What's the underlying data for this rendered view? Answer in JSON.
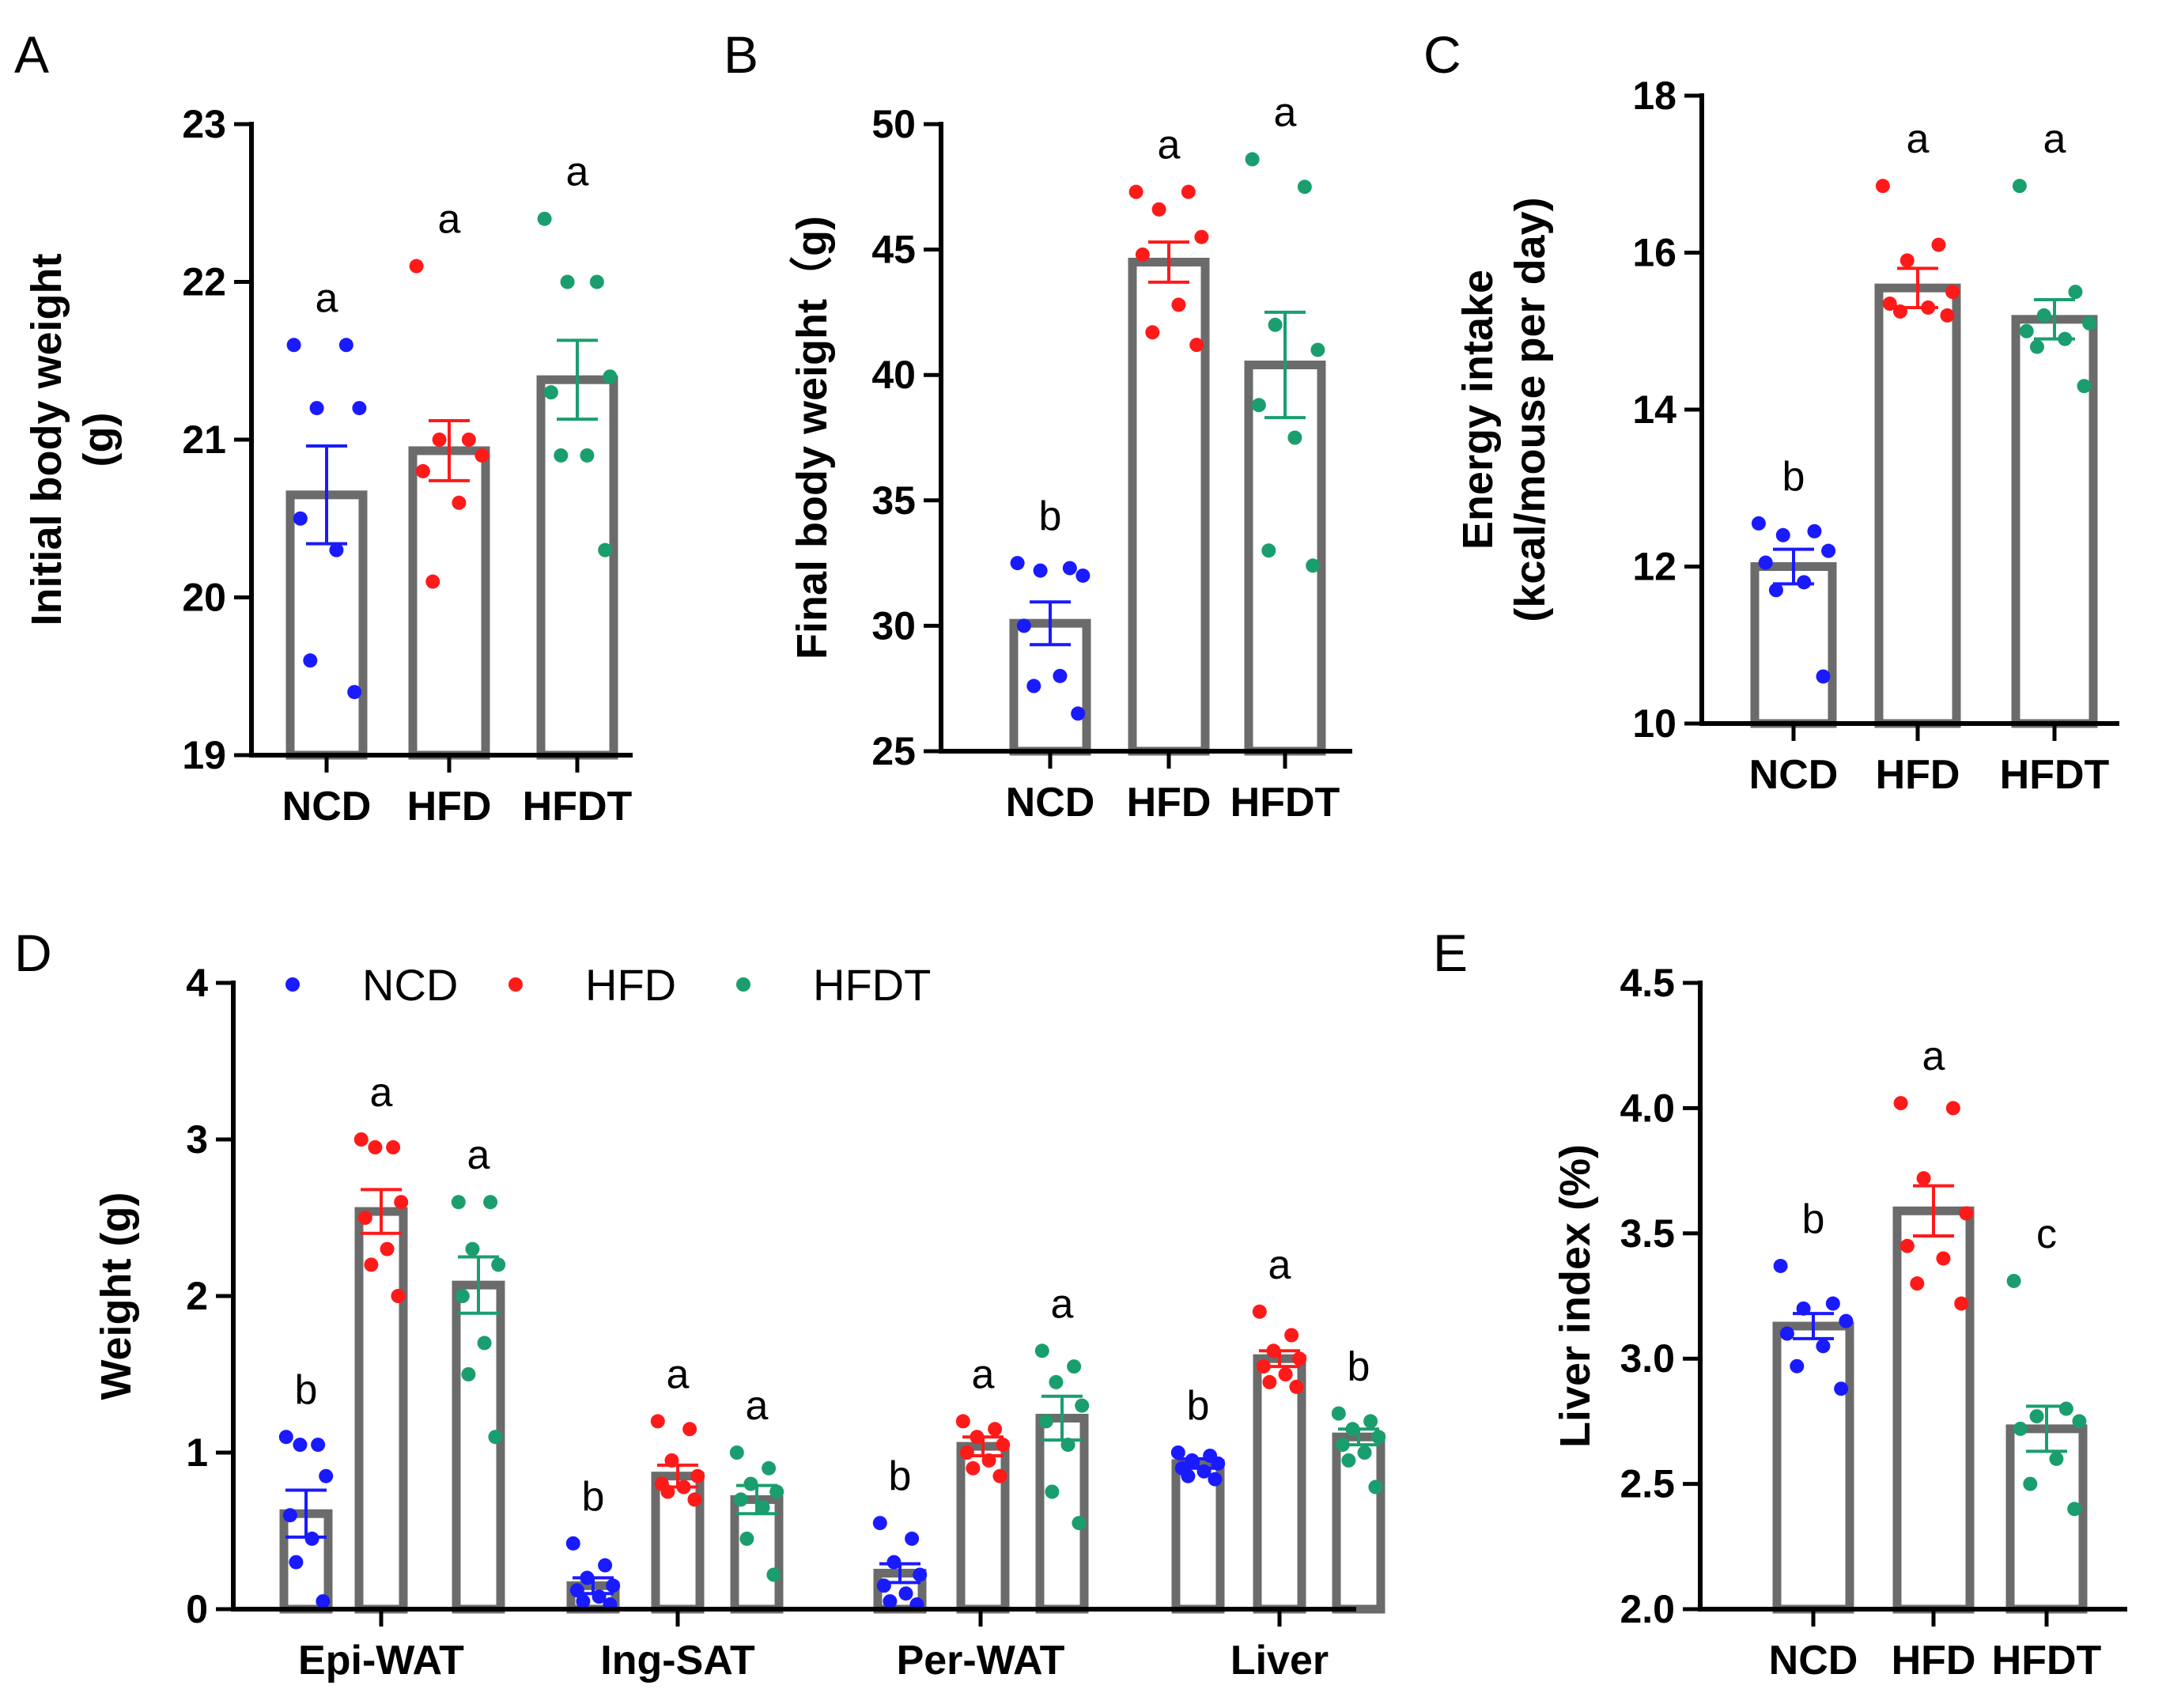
{
  "colors": {
    "NCD": "#1a1aff",
    "HFD": "#ff1a1a",
    "HFDT": "#1a9e6e",
    "bar": "#6b6b6b",
    "axis": "#000000"
  },
  "chart_data": [
    {
      "panel": "A",
      "type": "bar",
      "ylabel_lines": [
        "Initial body weight",
        "(g)"
      ],
      "ylim": [
        19,
        23
      ],
      "yticks": [
        19,
        20,
        21,
        22,
        23
      ],
      "categories": [
        "NCD",
        "HFD",
        "HFDT"
      ],
      "groups": [
        {
          "name": "NCD",
          "mean": 20.65,
          "sem": 0.31,
          "sig": "a",
          "points": [
            21.6,
            21.6,
            21.2,
            21.2,
            20.5,
            20.3,
            19.6,
            19.4
          ]
        },
        {
          "name": "HFD",
          "mean": 20.93,
          "sem": 0.19,
          "sig": "a",
          "points": [
            22.1,
            21.0,
            21.0,
            20.9,
            20.8,
            20.6,
            20.1
          ]
        },
        {
          "name": "HFDT",
          "mean": 21.38,
          "sem": 0.25,
          "sig": "a",
          "points": [
            22.4,
            22.0,
            22.0,
            21.4,
            21.3,
            20.9,
            20.9,
            20.3
          ]
        }
      ]
    },
    {
      "panel": "B",
      "type": "bar",
      "ylabel_lines": [
        "Final body weight（g)"
      ],
      "ylim": [
        25,
        50
      ],
      "yticks": [
        25,
        30,
        35,
        40,
        45,
        50
      ],
      "categories": [
        "NCD",
        "HFD",
        "HFDT"
      ],
      "groups": [
        {
          "name": "NCD",
          "mean": 30.1,
          "sem": 0.85,
          "sig": "b",
          "points": [
            32.5,
            32.3,
            32.2,
            32.0,
            30.0,
            28.0,
            27.6,
            26.5
          ]
        },
        {
          "name": "HFD",
          "mean": 44.5,
          "sem": 0.8,
          "sig": "a",
          "points": [
            47.3,
            47.3,
            46.6,
            45.5,
            44.8,
            42.8,
            41.7,
            41.2
          ]
        },
        {
          "name": "HFDT",
          "mean": 40.4,
          "sem": 2.1,
          "sig": "a",
          "points": [
            48.6,
            47.5,
            42.0,
            41.0,
            38.8,
            37.5,
            33.0,
            32.4
          ]
        }
      ]
    },
    {
      "panel": "C",
      "type": "bar",
      "ylabel_lines": [
        "Energy intake",
        "(kcal/mouse per day)"
      ],
      "ylim": [
        10,
        18
      ],
      "yticks": [
        10,
        12,
        14,
        16,
        18
      ],
      "categories": [
        "NCD",
        "HFD",
        "HFDT"
      ],
      "groups": [
        {
          "name": "NCD",
          "mean": 12.0,
          "sem": 0.22,
          "sig": "b",
          "points": [
            12.55,
            12.45,
            12.4,
            12.2,
            12.05,
            11.8,
            11.7,
            10.6
          ]
        },
        {
          "name": "HFD",
          "mean": 15.55,
          "sem": 0.25,
          "sig": "a",
          "points": [
            16.85,
            16.1,
            15.9,
            15.5,
            15.35,
            15.3,
            15.25,
            15.2
          ]
        },
        {
          "name": "HFDT",
          "mean": 15.15,
          "sem": 0.25,
          "sig": "a",
          "points": [
            16.85,
            15.5,
            15.2,
            15.1,
            15.0,
            14.9,
            14.8,
            14.3
          ]
        }
      ]
    },
    {
      "panel": "D",
      "type": "grouped-bar",
      "ylabel_lines": [
        "Weight (g)"
      ],
      "ylim": [
        0,
        4
      ],
      "yticks": [
        0,
        1,
        2,
        3,
        4
      ],
      "categories": [
        "Epi-WAT",
        "Ing-SAT",
        "Per-WAT",
        "Liver"
      ],
      "legend": [
        "NCD",
        "HFD",
        "HFDT"
      ],
      "groups": [
        {
          "category": "Epi-WAT",
          "series": [
            {
              "name": "NCD",
              "mean": 0.61,
              "sem": 0.15,
              "sig": "b",
              "points": [
                1.1,
                1.05,
                1.05,
                0.85,
                0.6,
                0.45,
                0.3,
                0.05
              ]
            },
            {
              "name": "HFD",
              "mean": 2.54,
              "sem": 0.14,
              "sig": "a",
              "points": [
                3.0,
                2.95,
                2.95,
                2.6,
                2.5,
                2.3,
                2.2,
                2.0
              ]
            },
            {
              "name": "HFDT",
              "mean": 2.07,
              "sem": 0.18,
              "sig": "a",
              "points": [
                2.6,
                2.6,
                2.3,
                2.2,
                2.0,
                1.7,
                1.5,
                1.1
              ]
            }
          ]
        },
        {
          "category": "Ing-SAT",
          "series": [
            {
              "name": "NCD",
              "mean": 0.15,
              "sem": 0.05,
              "sig": "b",
              "points": [
                0.42,
                0.28,
                0.2,
                0.15,
                0.12,
                0.08,
                0.05,
                0.03
              ]
            },
            {
              "name": "HFD",
              "mean": 0.85,
              "sem": 0.07,
              "sig": "a",
              "points": [
                1.2,
                1.15,
                0.95,
                0.85,
                0.8,
                0.78,
                0.75,
                0.7
              ]
            },
            {
              "name": "HFDT",
              "mean": 0.7,
              "sem": 0.09,
              "sig": "a",
              "points": [
                1.0,
                0.9,
                0.8,
                0.75,
                0.7,
                0.65,
                0.45,
                0.22
              ]
            }
          ]
        },
        {
          "category": "Per-WAT",
          "series": [
            {
              "name": "NCD",
              "mean": 0.23,
              "sem": 0.06,
              "sig": "b",
              "points": [
                0.55,
                0.45,
                0.3,
                0.22,
                0.15,
                0.1,
                0.05,
                0.03
              ]
            },
            {
              "name": "HFD",
              "mean": 1.04,
              "sem": 0.06,
              "sig": "a",
              "points": [
                1.2,
                1.15,
                1.1,
                1.05,
                1.0,
                0.95,
                0.9,
                0.85
              ]
            },
            {
              "name": "HFDT",
              "mean": 1.22,
              "sem": 0.14,
              "sig": "a",
              "points": [
                1.65,
                1.55,
                1.45,
                1.3,
                1.2,
                1.05,
                0.75,
                0.55
              ]
            }
          ]
        },
        {
          "category": "Liver",
          "series": [
            {
              "name": "NCD",
              "mean": 0.93,
              "sem": 0.03,
              "sig": "b",
              "points": [
                1.0,
                0.98,
                0.95,
                0.93,
                0.9,
                0.88,
                0.85,
                0.83
              ]
            },
            {
              "name": "HFD",
              "mean": 1.6,
              "sem": 0.05,
              "sig": "a",
              "points": [
                1.9,
                1.75,
                1.65,
                1.6,
                1.55,
                1.5,
                1.45,
                1.42
              ]
            },
            {
              "name": "HFDT",
              "mean": 1.1,
              "sem": 0.05,
              "sig": "b",
              "points": [
                1.25,
                1.2,
                1.15,
                1.1,
                1.05,
                1.0,
                0.95,
                0.78
              ]
            }
          ]
        }
      ]
    },
    {
      "panel": "E",
      "type": "bar",
      "ylabel_lines": [
        "Liver index (%)"
      ],
      "ylim": [
        2.0,
        4.5
      ],
      "yticks": [
        "2.0",
        "2.5",
        "3.0",
        "3.5",
        "4.0",
        "4.5"
      ],
      "categories": [
        "NCD",
        "HFD",
        "HFDT"
      ],
      "groups": [
        {
          "name": "NCD",
          "mean": 3.13,
          "sem": 0.05,
          "sig": "b",
          "points": [
            3.37,
            3.22,
            3.2,
            3.15,
            3.1,
            3.05,
            2.97,
            2.88
          ]
        },
        {
          "name": "HFD",
          "mean": 3.59,
          "sem": 0.1,
          "sig": "a",
          "points": [
            4.02,
            4.0,
            3.72,
            3.58,
            3.45,
            3.4,
            3.3,
            3.22
          ]
        },
        {
          "name": "HFDT",
          "mean": 2.72,
          "sem": 0.09,
          "sig": "c",
          "points": [
            3.31,
            2.8,
            2.77,
            2.75,
            2.72,
            2.6,
            2.5,
            2.4
          ]
        }
      ]
    }
  ]
}
